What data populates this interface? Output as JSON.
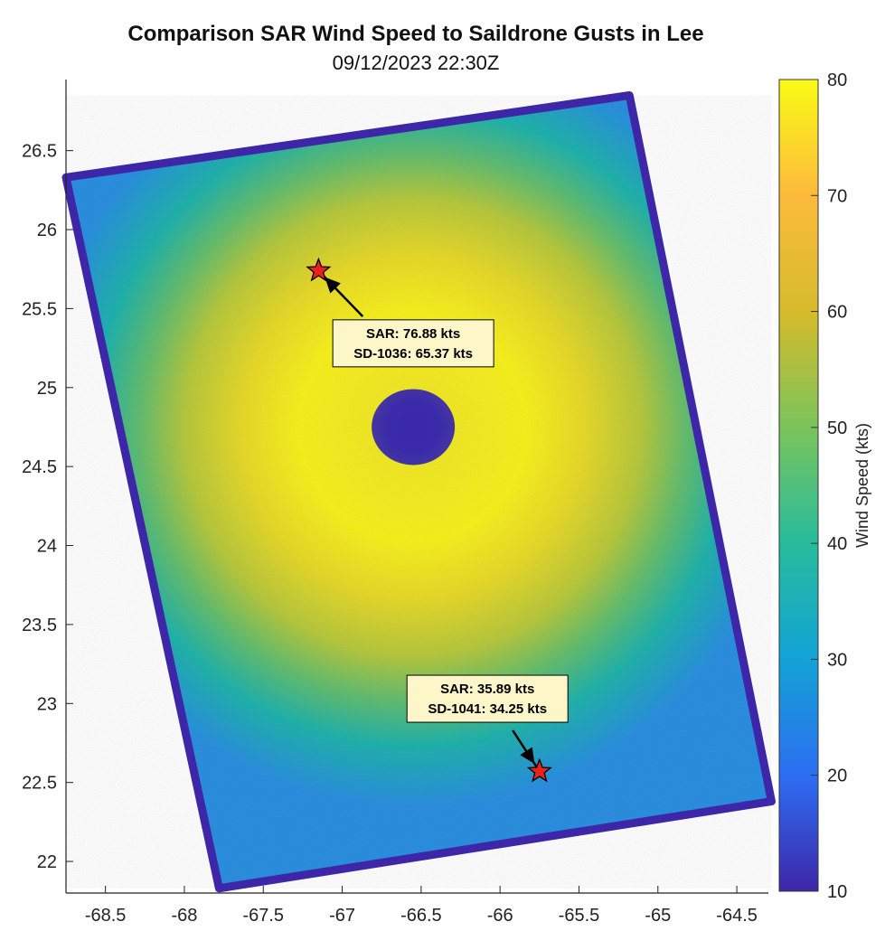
{
  "chart_data": {
    "type": "heatmap",
    "title": "Comparison SAR Wind Speed to Saildrone Gusts in Lee",
    "subtitle": "09/12/2023 22:30Z",
    "xlabel": "",
    "ylabel": "",
    "xlim": [
      -68.75,
      -64.3
    ],
    "ylim": [
      21.8,
      26.95
    ],
    "xticks": [
      "-68.5",
      "-68",
      "-67.5",
      "-67",
      "-66.5",
      "-66",
      "-65.5",
      "-65",
      "-64.5"
    ],
    "yticks": [
      "22",
      "22.5",
      "23",
      "23.5",
      "24",
      "24.5",
      "25",
      "25.5",
      "26",
      "26.5"
    ],
    "grid": false,
    "colorbar": {
      "label": "Wind Speed (kts)",
      "range": [
        10,
        80
      ],
      "ticks": [
        "10",
        "20",
        "30",
        "40",
        "50",
        "60",
        "70",
        "80"
      ],
      "colormap": "parula",
      "colors": [
        "#3e26a8",
        "#2d6df2",
        "#12a4d4",
        "#28bc9c",
        "#7ac45c",
        "#d4bb2c",
        "#fdbb3c",
        "#f9fb15"
      ]
    },
    "swath_corners": [
      {
        "lon": -68.75,
        "lat": 26.33
      },
      {
        "lon": -65.18,
        "lat": 26.85
      },
      {
        "lon": -64.28,
        "lat": 22.38
      },
      {
        "lon": -67.78,
        "lat": 21.83
      }
    ],
    "eye_center": {
      "lon": -66.55,
      "lat": 24.75
    },
    "markers": [
      {
        "name": "SD-1036",
        "lon": -67.15,
        "lat": 25.74,
        "lines": [
          "SAR: 76.88 kts",
          "SD-1036: 65.37 kts"
        ],
        "sar_kts": 76.88,
        "saildrone_kts": 65.37,
        "label_lon": -66.55,
        "label_lat": 25.28,
        "arrow_from_lon": -66.87,
        "arrow_from_lat": 25.45
      },
      {
        "name": "SD-1041",
        "lon": -65.75,
        "lat": 22.57,
        "lines": [
          "SAR: 35.89 kts",
          "SD-1041: 34.25 kts"
        ],
        "sar_kts": 35.89,
        "saildrone_kts": 34.25,
        "label_lon": -66.08,
        "label_lat": 23.03,
        "arrow_from_lon": -65.92,
        "arrow_from_lat": 22.83
      }
    ],
    "marker_color": "#e8231e"
  }
}
